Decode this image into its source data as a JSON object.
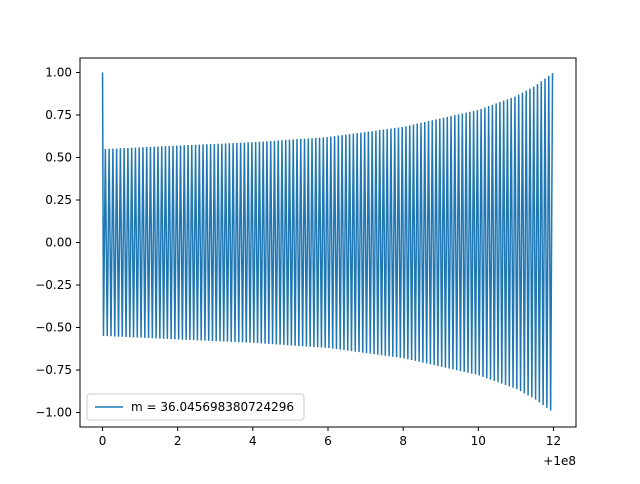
{
  "chart_data": {
    "type": "line",
    "title": "",
    "xlabel": "",
    "ylabel": "",
    "xlim": [
      -0.6,
      12.6
    ],
    "ylim": [
      -1.085,
      1.085
    ],
    "x_offset_label": "+1e8",
    "x_ticks": [
      0,
      2,
      4,
      6,
      8,
      10,
      12
    ],
    "x_tick_labels": [
      "0",
      "2",
      "4",
      "6",
      "8",
      "10",
      "12"
    ],
    "y_ticks": [
      1.0,
      0.75,
      0.5,
      0.25,
      0.0,
      -0.25,
      -0.5,
      -0.75,
      -1.0
    ],
    "y_tick_labels": [
      "1.00",
      "0.75",
      "0.50",
      "0.25",
      "0.00",
      "−0.25",
      "−0.50",
      "−0.75",
      "−1.00"
    ],
    "grid": false,
    "legend_position": "lower-left",
    "series": [
      {
        "name": "m = 36.045698380724296",
        "color": "#1f77b4",
        "x_range": [
          0,
          12
        ],
        "initial_value": 1.0,
        "oscillations": 120,
        "envelope": {
          "x": [
            0.1,
            2,
            4,
            6,
            8,
            10,
            11,
            11.5,
            12
          ],
          "amplitude": [
            0.55,
            0.57,
            0.59,
            0.62,
            0.68,
            0.78,
            0.86,
            0.92,
            1.0
          ]
        }
      }
    ]
  }
}
